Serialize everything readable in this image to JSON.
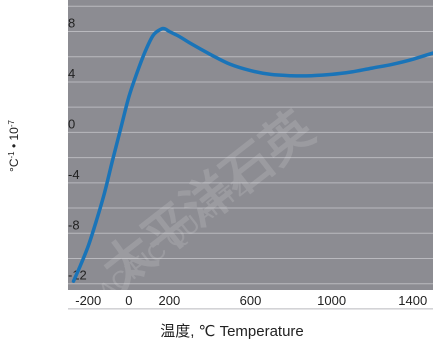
{
  "chart_data": {
    "type": "line",
    "title": "",
    "xlabel": "温度, ℃  Temperature",
    "ylabel": "°C⁻¹ • 10⁻⁷",
    "ylabel_parts": {
      "unit": "°C",
      "exp1": "-1",
      "mid": " • 10",
      "exp2": "-7"
    },
    "xlim": [
      -300,
      1500
    ],
    "ylim": [
      -12.5,
      10.5
    ],
    "x_ticks": [
      -200,
      0,
      200,
      600,
      1000,
      1400
    ],
    "x_tick_labels": [
      "-200",
      "0",
      "200",
      "600",
      "1000",
      "1400"
    ],
    "y_ticks": [
      8,
      4,
      0,
      -4,
      -8,
      -12
    ],
    "y_tick_labels": [
      "8",
      "4",
      "0",
      "-4",
      "-8",
      "-12"
    ],
    "grid": "horizontal",
    "colors": {
      "plot_background": "#8c8c92",
      "line": "#1a74b8",
      "grid": "#b9b9be",
      "tick_text": "#222222"
    },
    "watermark": [
      "太平洋石英",
      "PACIFIC QUARTZ"
    ],
    "series": [
      {
        "x": [
          -273,
          -240,
          -200,
          -160,
          -120,
          -80,
          -40,
          0,
          40,
          80,
          120,
          160,
          180,
          200,
          250,
          300,
          400,
          500,
          600,
          700,
          800,
          900,
          1000,
          1100,
          1200,
          1300,
          1400,
          1500
        ],
        "y": [
          -11.8,
          -10.6,
          -9.0,
          -7.0,
          -4.8,
          -2.2,
          0.3,
          2.8,
          4.7,
          6.4,
          7.7,
          8.2,
          8.2,
          8.0,
          7.6,
          7.1,
          6.2,
          5.4,
          4.9,
          4.6,
          4.5,
          4.5,
          4.6,
          4.8,
          5.1,
          5.4,
          5.8,
          6.3
        ]
      }
    ]
  }
}
